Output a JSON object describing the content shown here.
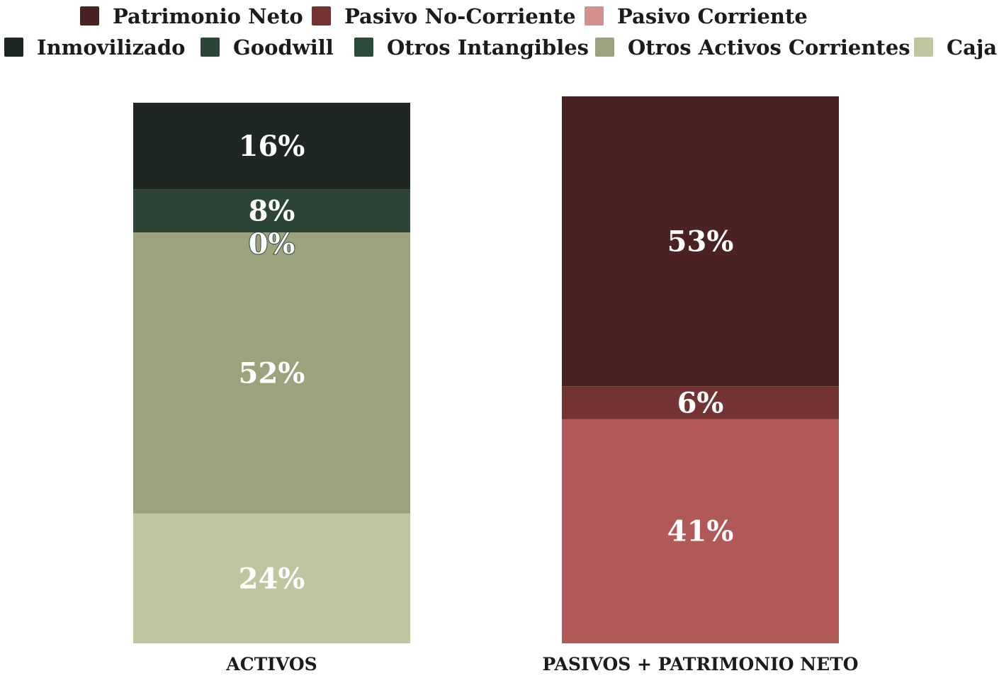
{
  "chart_data": {
    "type": "bar",
    "stacked": true,
    "normalized_percent": true,
    "categories": [
      "ACTIVOS",
      "PASIVOS + PATRIMONIO NETO"
    ],
    "legend_rows": [
      [
        "Patrimonio Neto",
        "Pasivo No-Corriente",
        "Pasivo Corriente"
      ],
      [
        "Inmovilizado",
        "Goodwill",
        "Otros Intangibles",
        "Otros Activos Corrientes",
        "Caja"
      ]
    ],
    "series": [
      {
        "name": "Patrimonio Neto",
        "color": "#4a2222",
        "values": [
          null,
          53
        ],
        "labels": [
          "",
          "53%"
        ]
      },
      {
        "name": "Pasivo No-Corriente",
        "color": "#733333",
        "values": [
          null,
          6
        ],
        "labels": [
          "",
          "6%"
        ]
      },
      {
        "name": "Pasivo Corriente",
        "color": "#b15959",
        "legend_color": "#d48f8f",
        "values": [
          null,
          41
        ],
        "labels": [
          "",
          "41%"
        ]
      },
      {
        "name": "Inmovilizado",
        "color": "#1f2723",
        "values": [
          16,
          null
        ],
        "labels": [
          "16%",
          ""
        ]
      },
      {
        "name": "Goodwill",
        "color": "#2c4536",
        "values": [
          8,
          null
        ],
        "labels": [
          "8%",
          ""
        ]
      },
      {
        "name": "Otros Intangibles",
        "color": "#2c4a3a",
        "values": [
          0,
          null
        ],
        "labels": [
          "0%",
          ""
        ]
      },
      {
        "name": "Otros Activos Corrientes",
        "color": "#9ca17e",
        "values": [
          52,
          null
        ],
        "labels": [
          "52%",
          ""
        ]
      },
      {
        "name": "Caja",
        "color": "#bfc59f",
        "values": [
          24,
          null
        ],
        "labels": [
          "24%",
          ""
        ]
      }
    ],
    "stack_order": [
      [
        "Inmovilizado",
        "Goodwill",
        "Otros Intangibles",
        "Otros Activos Corrientes",
        "Caja"
      ],
      [
        "Patrimonio Neto",
        "Pasivo No-Corriente",
        "Pasivo Corriente"
      ]
    ],
    "ylim": [
      0,
      100
    ],
    "grid": false,
    "legend_position": "top"
  }
}
